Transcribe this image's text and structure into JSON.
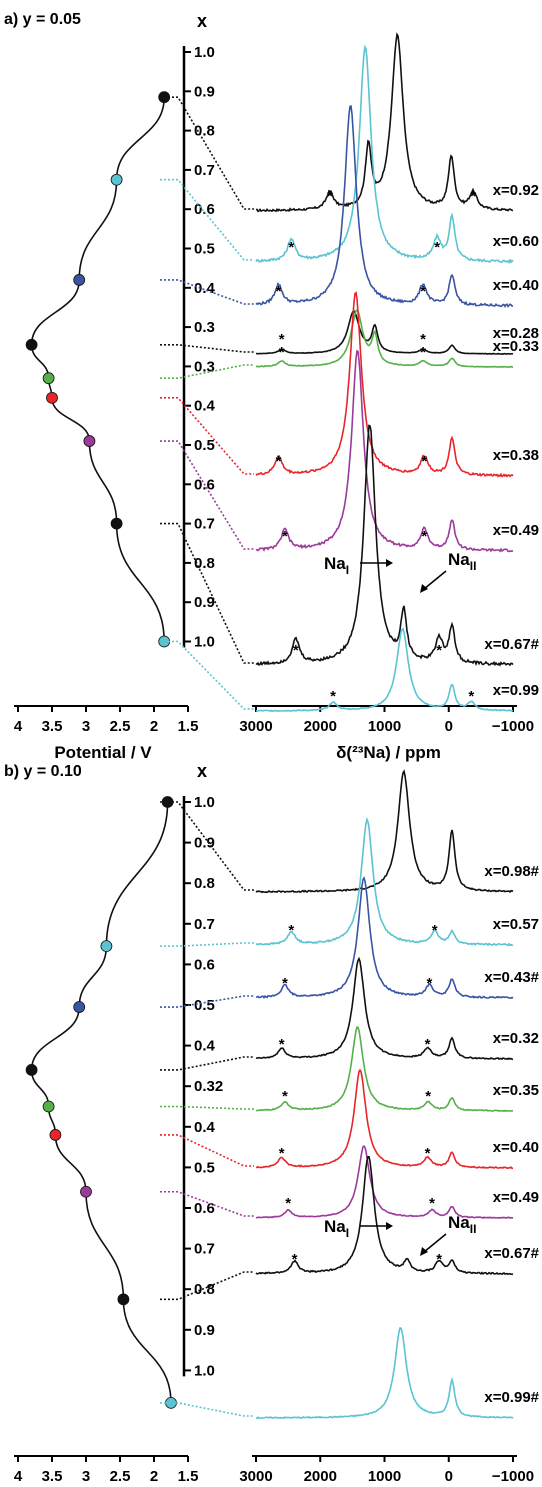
{
  "chart_data": [
    {
      "panel_label": "a) y = 0.05",
      "type": "line",
      "colors": {
        "black": "#111111",
        "cyan": "#5bc3d1",
        "blue": "#3a54a4",
        "green": "#55b04a",
        "red": "#e8262a",
        "magenta": "#9b3a9b"
      },
      "charge_curve": {
        "xlabel": "Potential / V",
        "xticks": [
          "4",
          "3.5",
          "3",
          "2.5",
          "2",
          "1.5"
        ],
        "xlim": [
          4,
          1.5
        ],
        "points": [
          {
            "potential": 1.85,
            "x": 0.92,
            "color": "black"
          },
          {
            "potential": 2.55,
            "x": 0.6,
            "color": "cyan"
          },
          {
            "potential": 3.1,
            "x": 0.4,
            "color": "blue"
          },
          {
            "potential": 3.8,
            "x": 0.28,
            "color": "black"
          },
          {
            "potential": 3.55,
            "x": 0.33,
            "color": "green"
          },
          {
            "potential": 3.5,
            "x": 0.38,
            "color": "red"
          },
          {
            "potential": 2.95,
            "x": 0.49,
            "color": "magenta"
          },
          {
            "potential": 2.55,
            "x": 0.67,
            "color": "black"
          },
          {
            "potential": 1.85,
            "x": 0.99,
            "color": "cyan"
          }
        ]
      },
      "x_axis": {
        "title": "x",
        "ticks": [
          "1.0",
          "0.9",
          "0.8",
          "0.7",
          "0.6",
          "0.5",
          "0.4",
          "0.3",
          "0.3",
          "0.4",
          "0.5",
          "0.6",
          "0.7",
          "0.8",
          "0.9",
          "1.0"
        ]
      },
      "spectra_axis": {
        "xlabel": "δ(²³Na) / ppm",
        "xticks": [
          "3000",
          "2000",
          "1000",
          "0",
          "−1000"
        ],
        "xlim": [
          3000,
          -1000
        ]
      },
      "annotations": {
        "na1": "NaI",
        "na2": "NaII"
      },
      "spectra": [
        {
          "label": "x=0.92",
          "color": "black",
          "peaks": [
            [
              800,
              1.0
            ],
            [
              1250,
              0.35
            ],
            [
              -40,
              0.3
            ]
          ],
          "sidebands": [
            1850,
            -380
          ]
        },
        {
          "label": "x=0.60",
          "color": "cyan",
          "peaks": [
            [
              1300,
              1.0
            ],
            [
              -50,
              0.2
            ]
          ],
          "sidebands": [
            2450,
            180
          ]
        },
        {
          "label": "x=0.40",
          "color": "blue",
          "peaks": [
            [
              1530,
              1.0
            ],
            [
              -50,
              0.15
            ]
          ],
          "sidebands": [
            2650,
            400
          ]
        },
        {
          "label": "x=0.28",
          "color": "black",
          "peaks": [
            [
              1480,
              1.0
            ],
            [
              1150,
              0.6
            ],
            [
              -50,
              0.2
            ]
          ],
          "sidebands": [
            2600,
            400
          ]
        },
        {
          "label": "x=0.33",
          "color": "green",
          "peaks": [
            [
              1430,
              1.0
            ],
            [
              1150,
              0.5
            ],
            [
              -50,
              0.15
            ]
          ],
          "sidebands": [
            2600,
            400
          ]
        },
        {
          "label": "x=0.38",
          "color": "red",
          "peaks": [
            [
              1450,
              1.0
            ],
            [
              -50,
              0.2
            ]
          ],
          "sidebands": [
            2650,
            380
          ]
        },
        {
          "label": "x=0.49",
          "color": "magenta",
          "peaks": [
            [
              1420,
              1.0
            ],
            [
              -50,
              0.15
            ]
          ],
          "sidebands": [
            2550,
            380
          ]
        },
        {
          "label": "x=0.67#",
          "color": "black",
          "peaks": [
            [
              1230,
              1.0
            ],
            [
              700,
              0.2
            ],
            [
              -50,
              0.15
            ]
          ],
          "sidebands": [
            2380,
            150
          ]
        },
        {
          "label": "x=0.99",
          "color": "cyan",
          "peaks": [
            [
              720,
              1.0
            ],
            [
              -50,
              0.3
            ]
          ],
          "sidebands": [
            1800,
            -350
          ]
        }
      ]
    },
    {
      "panel_label": "b) y = 0.10",
      "type": "line",
      "charge_curve": {
        "xlabel": "Potential / V",
        "xticks": [
          "4",
          "3.5",
          "3",
          "2.5",
          "2",
          "1.5"
        ],
        "xlim": [
          4,
          1.5
        ],
        "points": [
          {
            "potential": 1.8,
            "x": 0.98,
            "color": "black"
          },
          {
            "potential": 2.7,
            "x": 0.57,
            "color": "cyan"
          },
          {
            "potential": 3.1,
            "x": 0.43,
            "color": "blue"
          },
          {
            "potential": 3.8,
            "x": 0.32,
            "color": "black"
          },
          {
            "potential": 3.55,
            "x": 0.35,
            "color": "green"
          },
          {
            "potential": 3.45,
            "x": 0.4,
            "color": "red"
          },
          {
            "potential": 3.0,
            "x": 0.49,
            "color": "magenta"
          },
          {
            "potential": 2.45,
            "x": 0.67,
            "color": "black"
          },
          {
            "potential": 1.75,
            "x": 0.99,
            "color": "cyan"
          }
        ]
      },
      "x_axis": {
        "title": "x",
        "ticks": [
          "1.0",
          "0.9",
          "0.8",
          "0.7",
          "0.6",
          "0.5",
          "0.4",
          "0.32",
          "0.4",
          "0.5",
          "0.6",
          "0.7",
          "0.8",
          "0.9",
          "1.0"
        ]
      },
      "spectra_axis": {
        "xlabel": "δ(²³Na) / ppm",
        "xticks": [
          "3000",
          "2000",
          "1000",
          "0",
          "−1000"
        ],
        "xlim": [
          3000,
          -1000
        ]
      },
      "annotations": {
        "na1": "NaI",
        "na2": "NaII"
      },
      "spectra": [
        {
          "label": "x=0.98#",
          "color": "black",
          "peaks": [
            [
              700,
              1.0
            ],
            [
              -50,
              0.5
            ]
          ],
          "sidebands": []
        },
        {
          "label": "x=0.57",
          "color": "cyan",
          "peaks": [
            [
              1270,
              1.0
            ],
            [
              -50,
              0.1
            ]
          ],
          "sidebands": [
            2450,
            220
          ]
        },
        {
          "label": "x=0.43#",
          "color": "blue",
          "peaks": [
            [
              1320,
              1.0
            ],
            [
              -50,
              0.15
            ]
          ],
          "sidebands": [
            2550,
            300
          ]
        },
        {
          "label": "x=0.32",
          "color": "black",
          "peaks": [
            [
              1400,
              1.0
            ],
            [
              -50,
              0.2
            ]
          ],
          "sidebands": [
            2600,
            330
          ]
        },
        {
          "label": "x=0.35",
          "color": "green",
          "peaks": [
            [
              1420,
              1.0
            ],
            [
              -50,
              0.15
            ]
          ],
          "sidebands": [
            2550,
            320
          ]
        },
        {
          "label": "x=0.40",
          "color": "red",
          "peaks": [
            [
              1380,
              1.0
            ],
            [
              -50,
              0.15
            ]
          ],
          "sidebands": [
            2600,
            330
          ]
        },
        {
          "label": "x=0.49",
          "color": "magenta",
          "peaks": [
            [
              1320,
              1.0
            ],
            [
              -50,
              0.15
            ]
          ],
          "sidebands": [
            2500,
            260
          ]
        },
        {
          "label": "x=0.67#",
          "color": "black",
          "peaks": [
            [
              1250,
              1.0
            ],
            [
              650,
              0.1
            ],
            [
              -50,
              0.1
            ]
          ],
          "sidebands": [
            2400,
            150
          ]
        },
        {
          "label": "x=0.99#",
          "color": "cyan",
          "peaks": [
            [
              750,
              1.0
            ],
            [
              -50,
              0.4
            ]
          ],
          "sidebands": []
        }
      ]
    }
  ]
}
